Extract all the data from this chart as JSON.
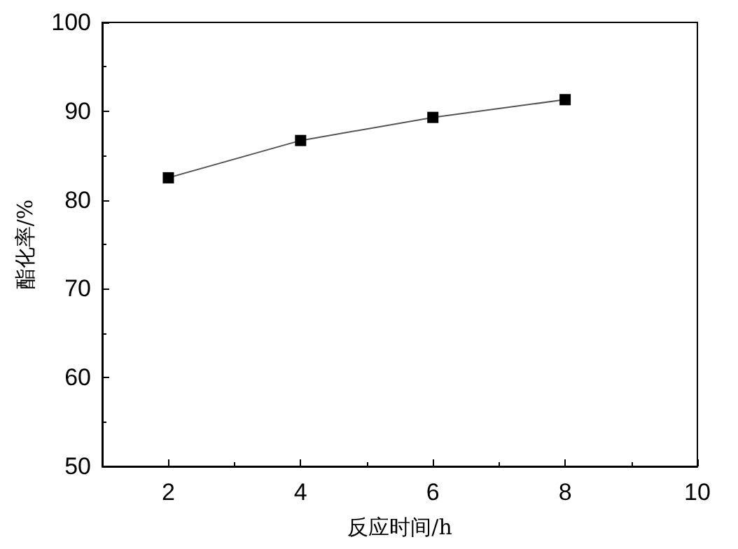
{
  "chart_data": {
    "type": "line",
    "xlabel": "反应时间/h",
    "ylabel": "酯化率/%",
    "x": [
      2,
      4,
      6,
      8
    ],
    "series": [
      {
        "color": "#000000",
        "values": [
          82.5,
          86.7,
          89.3,
          91.3
        ]
      }
    ],
    "xlim": [
      1,
      10
    ],
    "xticks": [
      2,
      4,
      6,
      8,
      10
    ],
    "ylim": [
      50,
      100
    ],
    "yticks": [
      50,
      60,
      70,
      80,
      90,
      100
    ],
    "marker": "square",
    "line_style": "solid"
  }
}
